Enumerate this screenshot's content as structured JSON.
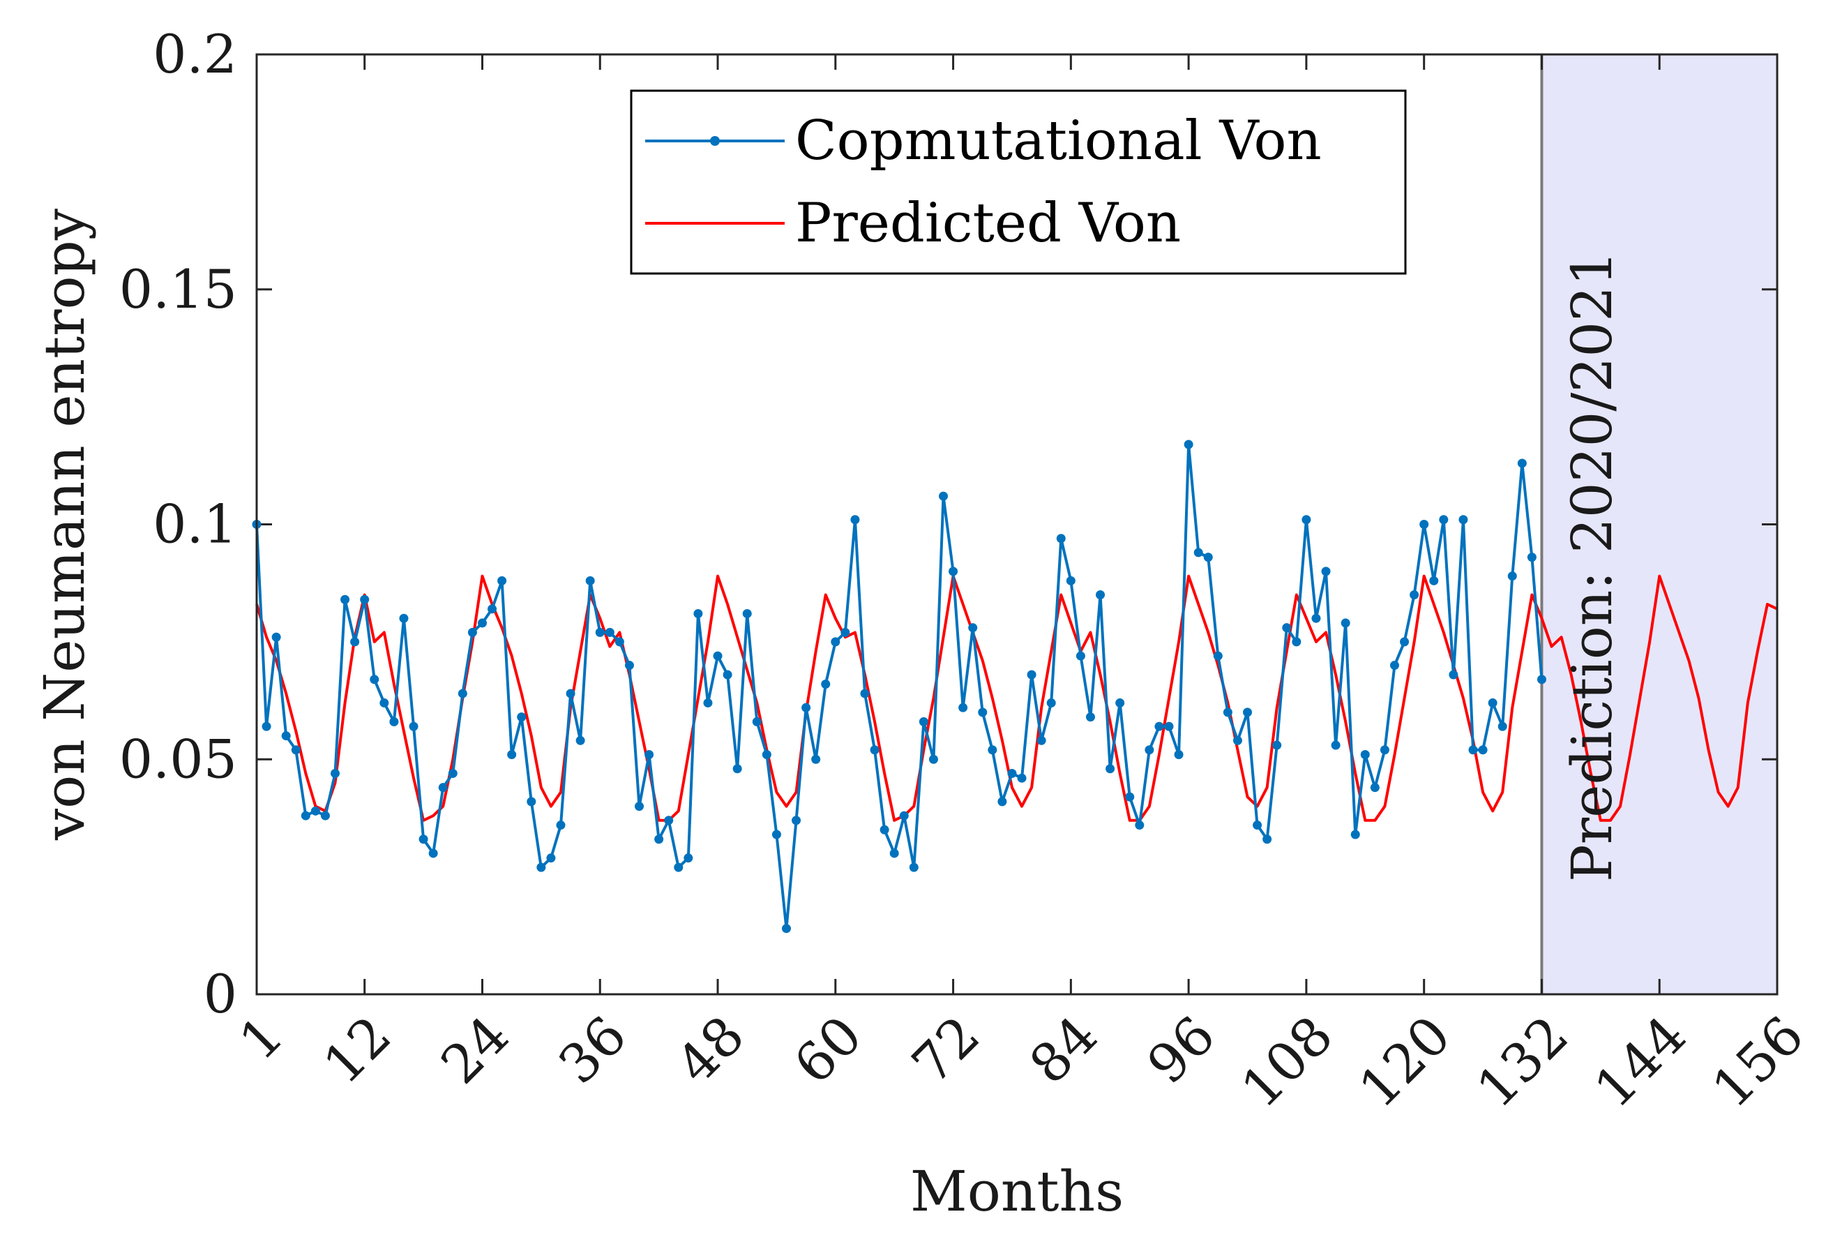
{
  "chart_data": {
    "type": "line",
    "title": "",
    "xlabel": "Months",
    "ylabel": "von Neumann entropy",
    "xlim": [
      1,
      156
    ],
    "ylim": [
      0,
      0.2
    ],
    "xticks": [
      1,
      12,
      24,
      36,
      48,
      60,
      72,
      84,
      96,
      108,
      120,
      132,
      144,
      156
    ],
    "xtick_labels": [
      "1",
      "12",
      "24",
      "36",
      "48",
      "60",
      "72",
      "84",
      "96",
      "108",
      "120",
      "132",
      "144",
      "156"
    ],
    "yticks": [
      0,
      0.05,
      0.1,
      0.15,
      0.2
    ],
    "ytick_labels": [
      "0",
      "0.05",
      "0.1",
      "0.15",
      "0.2"
    ],
    "legend_position": "top-center",
    "colors": {
      "computational": "#0072BD",
      "predicted": "#FF0000",
      "prediction_region": "#E6E6FA",
      "region_border": "#7a7a7a",
      "axes": "#262626"
    },
    "prediction_region": {
      "x_start": 132,
      "x_end": 156,
      "label": "Prediction: 2020/2021"
    },
    "series": [
      {
        "name": "Copmutational Von",
        "marker": "dot",
        "x_start": 1,
        "values": [
          0.1,
          0.057,
          0.076,
          0.055,
          0.052,
          0.038,
          0.039,
          0.038,
          0.047,
          0.084,
          0.075,
          0.084,
          0.067,
          0.062,
          0.058,
          0.08,
          0.057,
          0.033,
          0.03,
          0.044,
          0.047,
          0.064,
          0.077,
          0.079,
          0.082,
          0.088,
          0.051,
          0.059,
          0.041,
          0.027,
          0.029,
          0.036,
          0.064,
          0.054,
          0.088,
          0.077,
          0.077,
          0.075,
          0.07,
          0.04,
          0.051,
          0.033,
          0.037,
          0.027,
          0.029,
          0.081,
          0.062,
          0.072,
          0.068,
          0.048,
          0.081,
          0.058,
          0.051,
          0.034,
          0.014,
          0.037,
          0.061,
          0.05,
          0.066,
          0.075,
          0.077,
          0.101,
          0.064,
          0.052,
          0.035,
          0.03,
          0.038,
          0.027,
          0.058,
          0.05,
          0.106,
          0.09,
          0.061,
          0.078,
          0.06,
          0.052,
          0.041,
          0.047,
          0.046,
          0.068,
          0.054,
          0.062,
          0.097,
          0.088,
          0.072,
          0.059,
          0.085,
          0.048,
          0.062,
          0.042,
          0.036,
          0.052,
          0.057,
          0.057,
          0.051,
          0.117,
          0.094,
          0.093,
          0.072,
          0.06,
          0.054,
          0.06,
          0.036,
          0.033,
          0.053,
          0.078,
          0.075,
          0.101,
          0.08,
          0.09,
          0.053,
          0.079,
          0.034,
          0.051,
          0.044,
          0.052,
          0.07,
          0.075,
          0.085,
          0.1,
          0.088,
          0.101,
          0.068,
          0.101,
          0.052,
          0.052,
          0.062,
          0.057,
          0.089,
          0.113,
          0.093,
          0.067
        ]
      },
      {
        "name": "Predicted Von",
        "marker": "none",
        "x_start": 1,
        "values": [
          0.083,
          0.076,
          0.071,
          0.064,
          0.056,
          0.047,
          0.04,
          0.039,
          0.045,
          0.062,
          0.076,
          0.085,
          0.075,
          0.077,
          0.066,
          0.056,
          0.046,
          0.037,
          0.038,
          0.04,
          0.05,
          0.063,
          0.075,
          0.089,
          0.083,
          0.078,
          0.072,
          0.064,
          0.055,
          0.044,
          0.04,
          0.043,
          0.061,
          0.073,
          0.085,
          0.08,
          0.074,
          0.077,
          0.068,
          0.058,
          0.048,
          0.037,
          0.037,
          0.039,
          0.051,
          0.063,
          0.075,
          0.089,
          0.083,
          0.076,
          0.069,
          0.062,
          0.052,
          0.043,
          0.04,
          0.043,
          0.06,
          0.073,
          0.085,
          0.08,
          0.076,
          0.077,
          0.068,
          0.058,
          0.047,
          0.037,
          0.038,
          0.04,
          0.052,
          0.063,
          0.076,
          0.089,
          0.083,
          0.077,
          0.071,
          0.063,
          0.054,
          0.044,
          0.04,
          0.044,
          0.061,
          0.073,
          0.085,
          0.079,
          0.073,
          0.077,
          0.068,
          0.058,
          0.047,
          0.037,
          0.037,
          0.04,
          0.051,
          0.063,
          0.075,
          0.089,
          0.083,
          0.077,
          0.07,
          0.062,
          0.052,
          0.042,
          0.04,
          0.044,
          0.061,
          0.073,
          0.085,
          0.08,
          0.075,
          0.077,
          0.068,
          0.058,
          0.047,
          0.037,
          0.037,
          0.04,
          0.051,
          0.063,
          0.075,
          0.089,
          0.083,
          0.077,
          0.07,
          0.063,
          0.054,
          0.043,
          0.039,
          0.043,
          0.061,
          0.073,
          0.085,
          0.08,
          0.074,
          0.076,
          0.068,
          0.058,
          0.047,
          0.037,
          0.037,
          0.04,
          0.051,
          0.063,
          0.075,
          0.089,
          0.083,
          0.077,
          0.071,
          0.063,
          0.052,
          0.043,
          0.04,
          0.044,
          0.062,
          0.073,
          0.083,
          0.082
        ]
      }
    ]
  }
}
